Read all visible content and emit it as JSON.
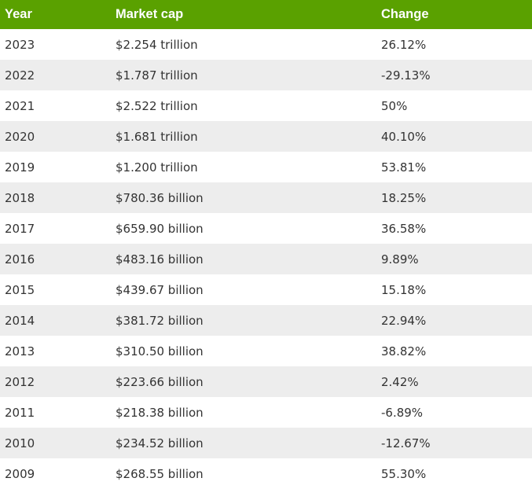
{
  "chart_data": {
    "type": "table",
    "columns": [
      "Year",
      "Market cap",
      "Change"
    ],
    "rows": [
      {
        "year": "2023",
        "market_cap": "$2.254 trillion",
        "change": "26.12%"
      },
      {
        "year": "2022",
        "market_cap": "$1.787 trillion",
        "change": "-29.13%"
      },
      {
        "year": "2021",
        "market_cap": "$2.522 trillion",
        "change": "50%"
      },
      {
        "year": "2020",
        "market_cap": "$1.681 trillion",
        "change": "40.10%"
      },
      {
        "year": "2019",
        "market_cap": "$1.200 trillion",
        "change": "53.81%"
      },
      {
        "year": "2018",
        "market_cap": "$780.36 billion",
        "change": "18.25%"
      },
      {
        "year": "2017",
        "market_cap": "$659.90 billion",
        "change": "36.58%"
      },
      {
        "year": "2016",
        "market_cap": "$483.16 billion",
        "change": "9.89%"
      },
      {
        "year": "2015",
        "market_cap": "$439.67 billion",
        "change": "15.18%"
      },
      {
        "year": "2014",
        "market_cap": "$381.72 billion",
        "change": "22.94%"
      },
      {
        "year": "2013",
        "market_cap": "$310.50 billion",
        "change": "38.82%"
      },
      {
        "year": "2012",
        "market_cap": "$223.66 billion",
        "change": "2.42%"
      },
      {
        "year": "2011",
        "market_cap": "$218.38 billion",
        "change": "-6.89%"
      },
      {
        "year": "2010",
        "market_cap": "$234.52 billion",
        "change": "-12.67%"
      },
      {
        "year": "2009",
        "market_cap": "$268.55 billion",
        "change": "55.30%"
      }
    ],
    "header_color": "#5aa100",
    "stripe_color": "#ededed"
  }
}
